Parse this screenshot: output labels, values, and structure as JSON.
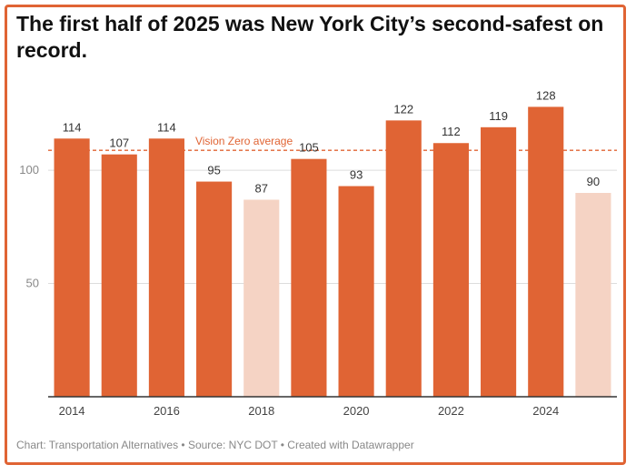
{
  "title": "The first half of 2025 was New York City’s second-safest on record.",
  "footer": "Chart: Transportation Alternatives • Source: NYC DOT • Created with Datawrapper",
  "colors": {
    "accent": "#e06434",
    "highlight": "#f5d3c4",
    "grid": "#dddddd"
  },
  "chart_data": {
    "type": "bar",
    "categories": [
      "2014",
      "2015",
      "2016",
      "2017",
      "2018",
      "2019",
      "2020",
      "2021",
      "2022",
      "2023",
      "2024",
      "2025"
    ],
    "values": [
      114,
      107,
      114,
      95,
      87,
      105,
      93,
      122,
      112,
      119,
      128,
      90
    ],
    "value_labels": [
      "114",
      "107",
      "114",
      "95",
      "87",
      "105",
      "93",
      "122",
      "112",
      "119",
      "128",
      "90"
    ],
    "x_tick_labels": [
      "2014",
      "",
      "2016",
      "",
      "2018",
      "",
      "2020",
      "",
      "2022",
      "",
      "2024",
      ""
    ],
    "highlighted_bars": [
      "2018",
      "2025"
    ],
    "y_ticks": [
      {
        "value": 50,
        "label": "50"
      },
      {
        "value": 100,
        "label": "100"
      }
    ],
    "ylim": [
      0,
      135
    ],
    "grid": true,
    "reference_line": {
      "label": "Vision Zero average",
      "value": 108.8
    }
  }
}
